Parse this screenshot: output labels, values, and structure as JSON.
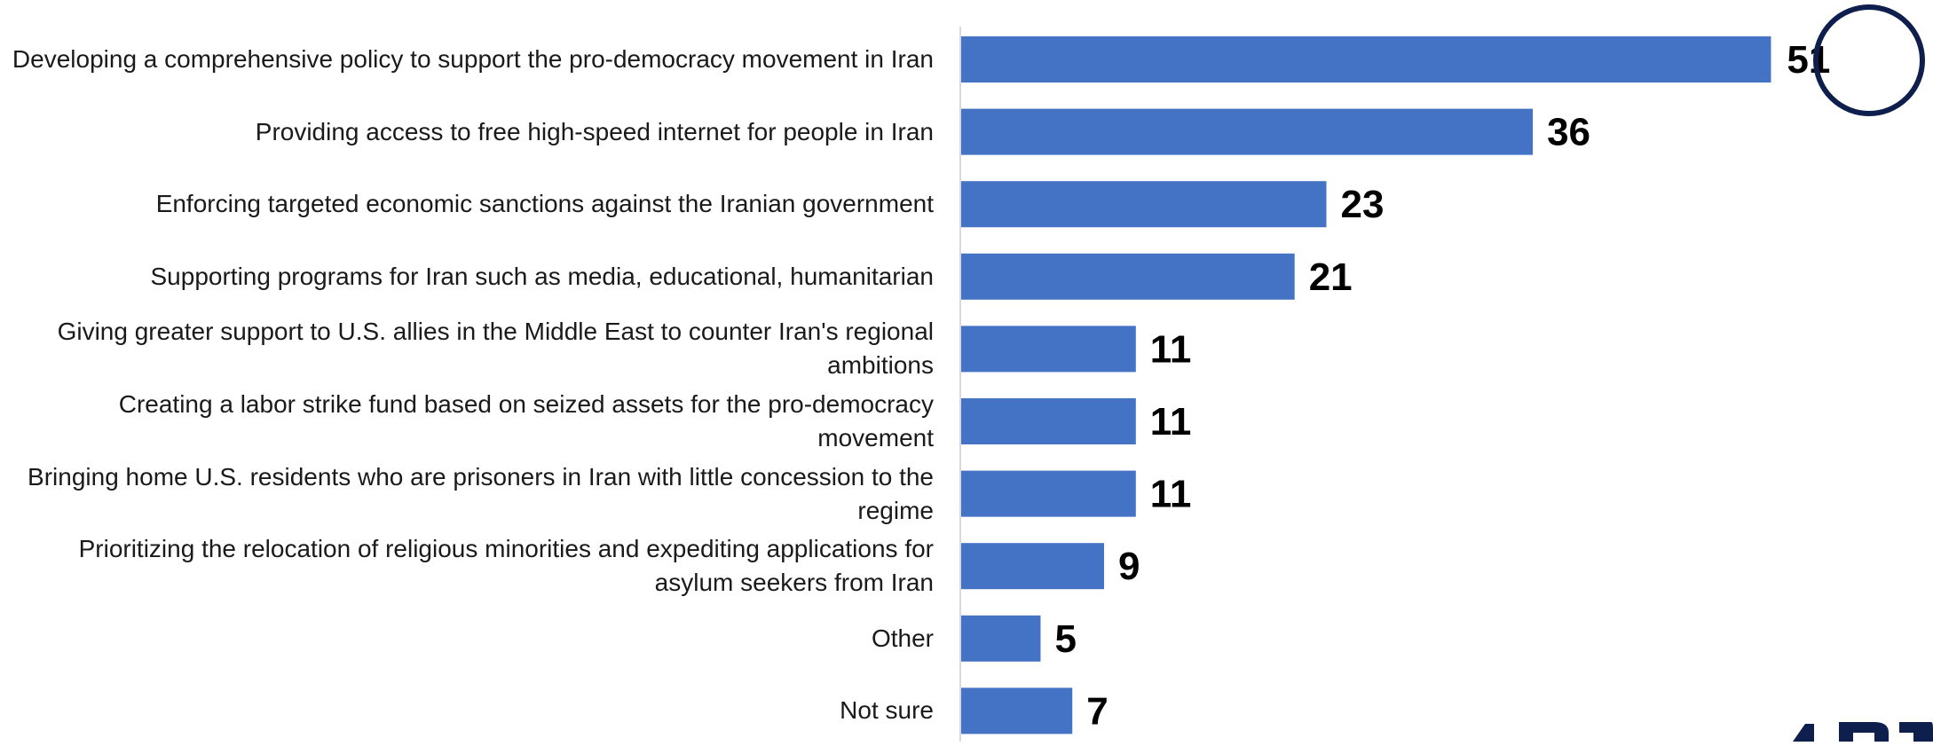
{
  "chart_data": {
    "type": "bar",
    "orientation": "horizontal",
    "categories": [
      "Developing a comprehensive policy to support the pro-democracy movement in Iran",
      "Providing access to free high-speed internet for people in Iran",
      "Enforcing targeted economic sanctions against the Iranian government",
      "Supporting programs for Iran such as media, educational, humanitarian",
      "Giving greater support to U.S. allies in the Middle East to counter Iran's regional ambitions",
      "Creating a labor strike fund based on seized assets for the pro-democracy movement",
      "Bringing home U.S. residents who are prisoners in Iran with little concession to the regime",
      "Prioritizing the relocation of religious minorities and expediting applications for asylum seekers from Iran",
      "Other",
      "Not sure"
    ],
    "values": [
      51,
      36,
      23,
      21,
      11,
      11,
      11,
      9,
      5,
      7
    ],
    "value_labels": [
      "51",
      "36",
      "23",
      "21",
      "11",
      "11",
      "11",
      "9",
      "5",
      "7"
    ],
    "title": "",
    "xlabel": "",
    "ylabel": "",
    "xlim": [
      0,
      55
    ],
    "grid": false,
    "legend": "none",
    "bar_color": "#4472C4",
    "highlight": {
      "category_index": 0,
      "shape": "circle",
      "color": "#0E1F4D"
    }
  },
  "colors": {
    "bar": "#4472C4",
    "axis_line": "#D9D9D9",
    "highlight_ring": "#0E1F4D",
    "logo": "#0E1F4D"
  }
}
